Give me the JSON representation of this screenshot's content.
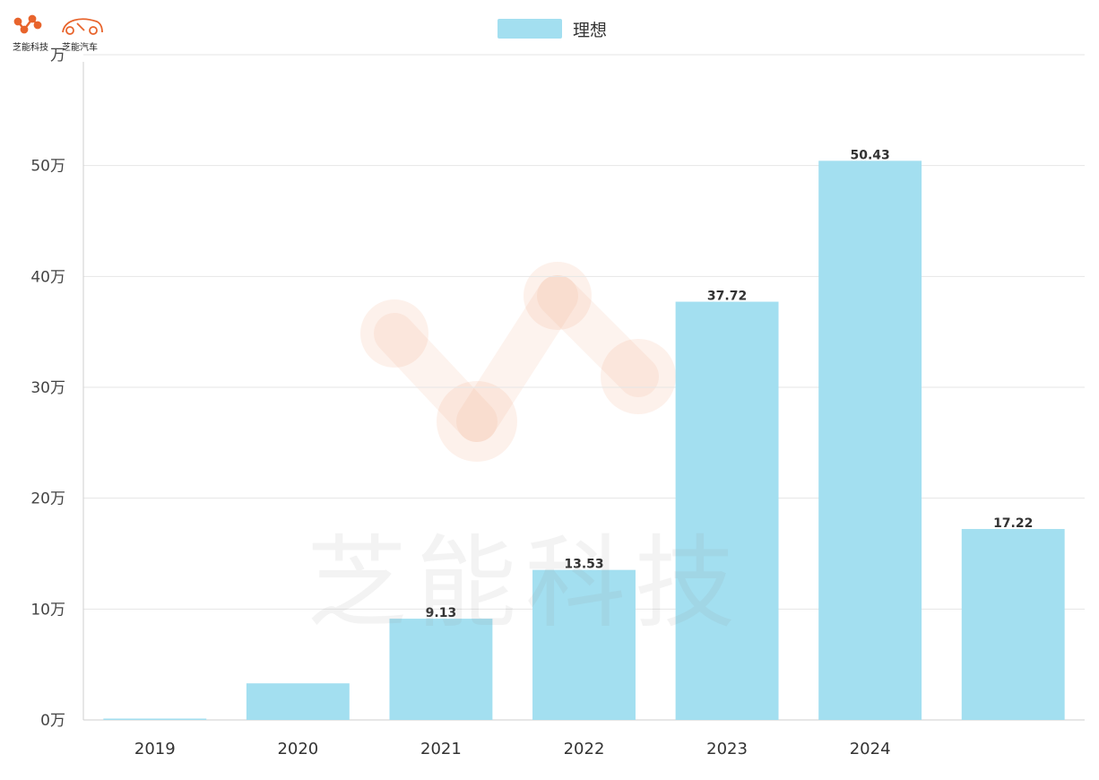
{
  "logos": {
    "brand1": "芝能科技",
    "brand2": "芝能汽车",
    "accent": "#e8642c"
  },
  "watermark": {
    "text": "芝能科技"
  },
  "chart_data": {
    "type": "bar",
    "title": "",
    "xlabel": "",
    "ylabel": "",
    "categories": [
      "2019",
      "2020",
      "2021",
      "2022",
      "2023",
      "2024",
      ""
    ],
    "series": [
      {
        "name": "理想",
        "color": "#a3dff0",
        "values": [
          0.1,
          3.3,
          9.13,
          13.53,
          37.72,
          50.43,
          17.22
        ],
        "data_labels": [
          "",
          "",
          "9.13",
          "13.53",
          "37.72",
          "50.43",
          "17.22"
        ]
      }
    ],
    "ylim": [
      0,
      60
    ],
    "yticks": [
      0,
      10,
      20,
      30,
      40,
      50,
      60
    ],
    "ytick_labels": [
      "0万",
      "10万",
      "20万",
      "30万",
      "40万",
      "50万",
      "万"
    ],
    "grid": true,
    "legend": "top-center"
  }
}
